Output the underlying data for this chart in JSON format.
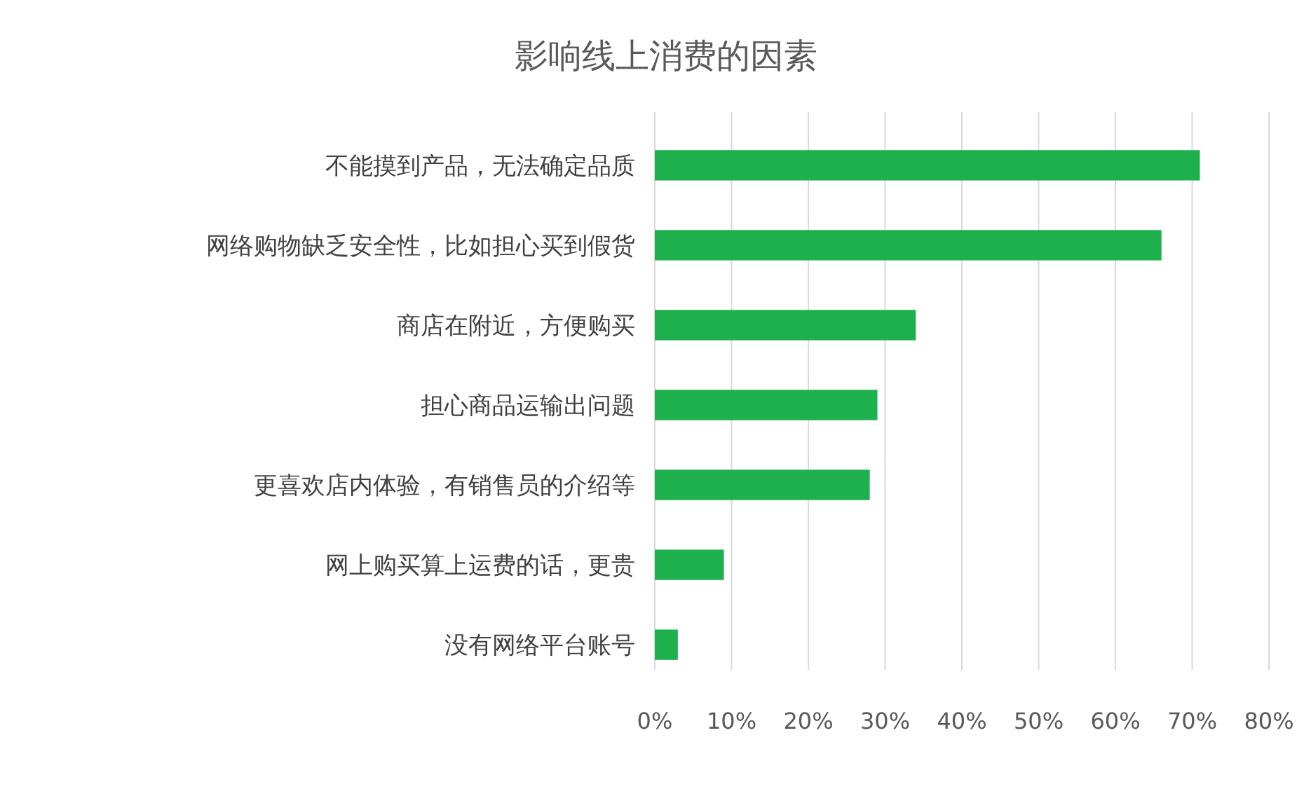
{
  "chart_data": {
    "type": "bar",
    "orientation": "horizontal",
    "title": "影响线上消费的因素",
    "categories": [
      "不能摸到产品，无法确定品质",
      "网络购物缺乏安全性，比如担心买到假货",
      "商店在附近，方便购买",
      "担心商品运输出问题",
      "更喜欢店内体验，有销售员的介绍等",
      "网上购买算上运费的话，更贵",
      "没有网络平台账号"
    ],
    "values": [
      0.71,
      0.66,
      0.34,
      0.29,
      0.28,
      0.09,
      0.03
    ],
    "color": "#1fb04e",
    "xlim": [
      0,
      0.8
    ],
    "xticks": [
      {
        "value": 0,
        "label": "0%"
      },
      {
        "value": 0.1,
        "label": "10%"
      },
      {
        "value": 0.2,
        "label": "20%"
      },
      {
        "value": 0.3,
        "label": "30%"
      },
      {
        "value": 0.4,
        "label": "40%"
      },
      {
        "value": 0.5,
        "label": "50%"
      },
      {
        "value": 0.6,
        "label": "60%"
      },
      {
        "value": 0.7,
        "label": "70%"
      },
      {
        "value": 0.8,
        "label": "80%"
      }
    ],
    "grid": "x"
  }
}
